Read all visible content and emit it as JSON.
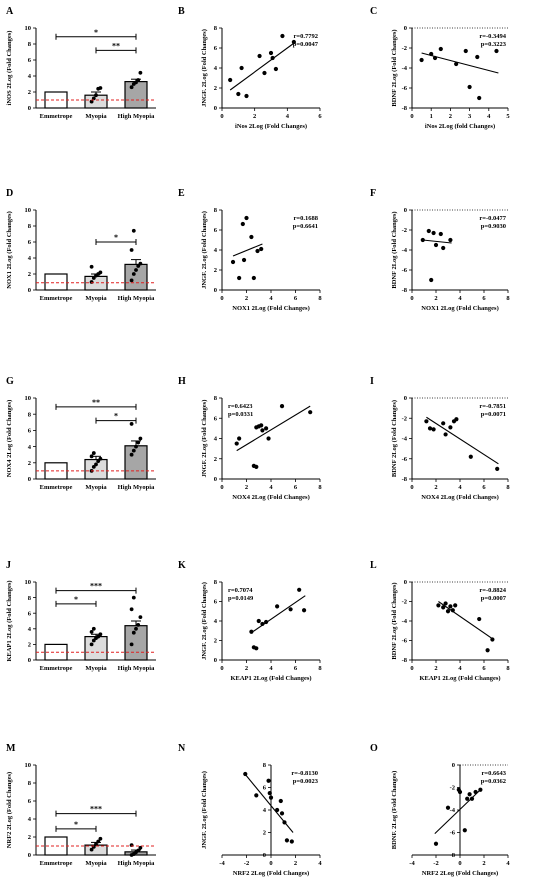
{
  "chart_data": [
    {
      "panel": "A",
      "type": "bar",
      "categories": [
        "Emmetrope",
        "Myopia",
        "High Myopia"
      ],
      "values": [
        2.0,
        1.6,
        3.3
      ],
      "errors": [
        0,
        0.4,
        0.3
      ],
      "ylabel": "iNOS 2Log (Fold Changes)",
      "ylim": [
        0,
        10
      ],
      "yticks": [
        0,
        2,
        4,
        6,
        8,
        10
      ],
      "refline": 1.0,
      "points": [
        [],
        [
          0.8,
          1.2,
          1.6,
          2.4,
          2.5
        ],
        [
          2.6,
          3.0,
          3.2,
          3.5,
          4.4
        ]
      ],
      "sig": [
        {
          "from": 0,
          "to": 2,
          "label": "*",
          "y": 8.9
        },
        {
          "from": 1,
          "to": 2,
          "label": "**",
          "y": 7.2
        }
      ]
    },
    {
      "panel": "B",
      "type": "scatter",
      "xlabel": "iNos 2Log (Fold Changes)",
      "ylabel": "JNGF. 2Log (Fold Changes)",
      "xlim": [
        0,
        6
      ],
      "ylim": [
        0,
        8
      ],
      "xticks": [
        0,
        2,
        4,
        6
      ],
      "yticks": [
        0,
        2,
        4,
        6,
        8
      ],
      "r": "r=0.7792",
      "p": "p=0.0047",
      "x": [
        0.5,
        1.0,
        1.2,
        1.5,
        2.3,
        2.6,
        3.0,
        3.1,
        3.3,
        3.7,
        4.4
      ],
      "y": [
        2.8,
        1.4,
        4.0,
        1.2,
        5.2,
        3.5,
        5.5,
        5.0,
        3.9,
        7.2,
        6.6
      ],
      "fit": [
        [
          0.5,
          1.8
        ],
        [
          4.5,
          6.6
        ]
      ]
    },
    {
      "panel": "C",
      "type": "scatter",
      "xlabel": "iNos 2Log (fold Changes)",
      "ylabel": "BDNF 2Log (Fold Changes)",
      "xlim": [
        0,
        5
      ],
      "ylim": [
        -8,
        0
      ],
      "xticks": [
        0,
        1,
        2,
        3,
        4,
        5
      ],
      "yticks": [
        0,
        -2,
        -4,
        -6,
        -8
      ],
      "r": "r=-0.3494",
      "p": "p=0.3223",
      "zeroline": true,
      "x": [
        0.5,
        1.0,
        1.2,
        1.5,
        2.3,
        2.8,
        3.0,
        3.4,
        3.5,
        4.4
      ],
      "y": [
        -3.2,
        -2.6,
        -3.0,
        -2.1,
        -3.6,
        -2.3,
        -5.9,
        -2.9,
        -7.0,
        -2.3
      ],
      "fit": [
        [
          0.5,
          -2.5
        ],
        [
          4.5,
          -4.5
        ]
      ]
    },
    {
      "panel": "D",
      "type": "bar",
      "categories": [
        "Emmetrope",
        "Myopia",
        "High Myopia"
      ],
      "values": [
        2.0,
        1.7,
        3.2
      ],
      "errors": [
        0,
        0.3,
        0.6
      ],
      "ylabel": "NOX1 2Log (Fold Changes)",
      "ylim": [
        0,
        10
      ],
      "yticks": [
        0,
        2,
        4,
        6,
        8,
        10
      ],
      "refline": 0.9,
      "points": [
        [],
        [
          1.0,
          1.5,
          1.8,
          2.0,
          2.2,
          2.9
        ],
        [
          1.2,
          2.0,
          2.5,
          3.0,
          3.3,
          5.0,
          7.4
        ]
      ],
      "sig": [
        {
          "from": 1,
          "to": 2,
          "label": "*",
          "y": 6.0
        }
      ]
    },
    {
      "panel": "E",
      "type": "scatter",
      "xlabel": "NOX1 2Log (Fold Changes)",
      "ylabel": "JNGF. 2Log (Fold Changes)",
      "xlim": [
        0,
        8
      ],
      "ylim": [
        0,
        8
      ],
      "xticks": [
        0,
        2,
        4,
        6,
        8
      ],
      "yticks": [
        0,
        2,
        4,
        6,
        8
      ],
      "r": "r=0.1688",
      "p": "p=0.6641",
      "x": [
        0.9,
        1.4,
        1.7,
        1.8,
        2.0,
        2.4,
        2.6,
        2.9,
        3.2
      ],
      "y": [
        2.8,
        1.2,
        6.6,
        3.0,
        7.2,
        5.3,
        1.2,
        3.9,
        4.1
      ],
      "fit": [
        [
          0.9,
          3.4
        ],
        [
          3.3,
          4.6
        ]
      ]
    },
    {
      "panel": "F",
      "type": "scatter",
      "xlabel": "NOX1 2Log (Fold Changes)",
      "ylabel": "BDNF 2Log (Fold Changes)",
      "xlim": [
        0,
        8
      ],
      "ylim": [
        -8,
        0
      ],
      "xticks": [
        0,
        2,
        4,
        6,
        8
      ],
      "yticks": [
        0,
        -2,
        -4,
        -6,
        -8
      ],
      "r": "r=-0.0477",
      "p": "p=0.9030",
      "zeroline": true,
      "x": [
        0.9,
        1.4,
        1.6,
        1.8,
        2.0,
        2.4,
        2.6,
        3.2
      ],
      "y": [
        -3.0,
        -2.1,
        -7.0,
        -2.3,
        -3.5,
        -2.4,
        -3.8,
        -3.0
      ],
      "fit": [
        [
          0.9,
          -3.0
        ],
        [
          3.3,
          -3.3
        ]
      ]
    },
    {
      "panel": "G",
      "type": "bar",
      "categories": [
        "Emmetrope",
        "Myopia",
        "High Myopia"
      ],
      "values": [
        2.0,
        2.4,
        4.1
      ],
      "errors": [
        0,
        0.4,
        0.6
      ],
      "ylabel": "NOX4 2Log (Fold Changes)",
      "ylim": [
        0,
        10
      ],
      "yticks": [
        0,
        2,
        4,
        6,
        8,
        10
      ],
      "refline": 1.0,
      "points": [
        [],
        [
          1.0,
          1.5,
          1.8,
          2.2,
          2.5,
          2.8,
          3.2
        ],
        [
          3.0,
          3.5,
          4.0,
          4.5,
          5.0,
          6.8
        ]
      ],
      "sig": [
        {
          "from": 0,
          "to": 2,
          "label": "**",
          "y": 8.9
        },
        {
          "from": 1,
          "to": 2,
          "label": "*",
          "y": 7.2
        }
      ]
    },
    {
      "panel": "H",
      "type": "scatter",
      "xlabel": "NOX4 2Log (Fold Changes)",
      "ylabel": "JNGF. 2Log (Fold Changes)",
      "xlim": [
        0,
        8
      ],
      "ylim": [
        0,
        8
      ],
      "xticks": [
        0,
        2,
        4,
        6,
        8
      ],
      "yticks": [
        0,
        2,
        4,
        6,
        8
      ],
      "r": "r=0.6423",
      "p": "p=0.0331",
      "x": [
        1.2,
        1.4,
        2.6,
        2.8,
        2.8,
        3.0,
        3.2,
        3.3,
        3.6,
        3.8,
        4.9,
        7.2
      ],
      "y": [
        3.5,
        4.0,
        1.3,
        1.2,
        5.1,
        5.2,
        5.3,
        4.8,
        5.0,
        4.0,
        7.2,
        6.6
      ],
      "fit": [
        [
          1.2,
          2.8
        ],
        [
          7.2,
          7.2
        ]
      ]
    },
    {
      "panel": "I",
      "type": "scatter",
      "xlabel": "NOX4 2Log (Fold Changes)",
      "ylabel": "BDNF 2Log (Fold Changes)",
      "xlim": [
        0,
        8
      ],
      "ylim": [
        -8,
        0
      ],
      "xticks": [
        0,
        2,
        4,
        6,
        8
      ],
      "yticks": [
        0,
        -2,
        -4,
        -6,
        -8
      ],
      "r": "r=-0.7851",
      "p": "p=0.0071",
      "zeroline": true,
      "x": [
        1.2,
        1.5,
        1.8,
        2.6,
        2.8,
        3.2,
        3.5,
        3.7,
        4.9,
        7.1
      ],
      "y": [
        -2.3,
        -3.0,
        -3.1,
        -2.5,
        -3.6,
        -2.9,
        -2.3,
        -2.1,
        -5.8,
        -7.0
      ],
      "fit": [
        [
          1.2,
          -1.9
        ],
        [
          7.2,
          -6.5
        ]
      ]
    },
    {
      "panel": "J",
      "type": "bar",
      "categories": [
        "Emmetrope",
        "Myopia",
        "High Myopia"
      ],
      "values": [
        2.0,
        3.0,
        4.4
      ],
      "errors": [
        0,
        0.3,
        0.6
      ],
      "ylabel": "KEAP1 2Log (Fold Changes)",
      "ylim": [
        0,
        10
      ],
      "yticks": [
        0,
        2,
        4,
        6,
        8,
        10
      ],
      "refline": 1.0,
      "points": [
        [],
        [
          2.0,
          2.5,
          2.8,
          3.0,
          3.3,
          3.6,
          4.0
        ],
        [
          2.0,
          3.5,
          4.0,
          4.5,
          5.5,
          6.5,
          8.0
        ]
      ],
      "sig": [
        {
          "from": 0,
          "to": 2,
          "label": "***",
          "y": 8.9
        },
        {
          "from": 0,
          "to": 1,
          "label": "*",
          "y": 7.2
        }
      ]
    },
    {
      "panel": "K",
      "type": "scatter",
      "xlabel": "KEAP1 2Log (Fold Changes)",
      "ylabel": "JNGF. 2Log (Fold Changes)",
      "xlim": [
        0,
        8
      ],
      "ylim": [
        0,
        8
      ],
      "xticks": [
        0,
        2,
        4,
        6,
        8
      ],
      "yticks": [
        0,
        2,
        4,
        6,
        8
      ],
      "r": "r=0.7074",
      "p": "p=0.0149",
      "x": [
        2.4,
        2.6,
        2.8,
        3.0,
        3.3,
        3.6,
        4.5,
        5.6,
        6.3,
        6.7
      ],
      "y": [
        2.9,
        1.3,
        1.2,
        4.0,
        3.7,
        3.9,
        5.5,
        5.2,
        7.2,
        5.1
      ],
      "fit": [
        [
          2.4,
          2.8
        ],
        [
          6.8,
          6.6
        ]
      ]
    },
    {
      "panel": "L",
      "type": "scatter",
      "xlabel": "KEAP1 2Log (Fold Changes)",
      "ylabel": "BDNF 2Log (Fold Changes)",
      "xlim": [
        0,
        8
      ],
      "ylim": [
        -8,
        0
      ],
      "xticks": [
        0,
        2,
        4,
        6,
        8
      ],
      "yticks": [
        0,
        -2,
        -4,
        -6,
        -8
      ],
      "r": "r=-0.8824",
      "p": "p=0.0007",
      "zeroline": true,
      "x": [
        2.2,
        2.6,
        2.8,
        3.0,
        3.2,
        3.4,
        3.6,
        5.6,
        6.3,
        6.7
      ],
      "y": [
        -2.4,
        -2.6,
        -2.2,
        -3.0,
        -2.5,
        -2.9,
        -2.4,
        -3.8,
        -7.0,
        -5.9
      ],
      "fit": [
        [
          2.2,
          -2.0
        ],
        [
          6.8,
          -5.9
        ]
      ]
    },
    {
      "panel": "M",
      "type": "bar",
      "categories": [
        "Emmetrope",
        "Myopia",
        "High Myopia"
      ],
      "values": [
        2.0,
        1.1,
        0.35
      ],
      "errors": [
        0,
        0.3,
        0.2
      ],
      "ylabel": "NRF2 2Log (Fold Changes)",
      "ylim": [
        0,
        10
      ],
      "yticks": [
        0,
        2,
        4,
        6,
        8,
        10
      ],
      "refline": 1.0,
      "points": [
        [],
        [
          0.6,
          0.9,
          1.2,
          1.5,
          1.8
        ],
        [
          0.0,
          0.1,
          0.3,
          0.5,
          0.8,
          1.1
        ]
      ],
      "sig": [
        {
          "from": 0,
          "to": 2,
          "label": "***",
          "y": 4.6
        },
        {
          "from": 0,
          "to": 1,
          "label": "*",
          "y": 2.9
        }
      ]
    },
    {
      "panel": "N",
      "type": "scatter",
      "xlabel": "NRF2 2Log (Fold Changes)",
      "ylabel": "JNGF. 2Log (Fold Changes)",
      "xlim": [
        -4,
        4
      ],
      "ylim": [
        0,
        8
      ],
      "xticks": [
        -4,
        -2,
        0,
        2,
        4
      ],
      "yticks": [
        0,
        2,
        4,
        6,
        8
      ],
      "r": "r=-0.8130",
      "p": "p=0.0023",
      "x": [
        -2.1,
        -1.2,
        -0.2,
        -0.1,
        0.0,
        0.5,
        0.8,
        0.9,
        1.1,
        1.3,
        1.7
      ],
      "y": [
        7.2,
        5.3,
        6.6,
        5.5,
        5.1,
        4.0,
        4.8,
        3.7,
        2.9,
        1.3,
        1.2
      ],
      "fit": [
        [
          -2.2,
          7.3
        ],
        [
          1.8,
          2.0
        ]
      ]
    },
    {
      "panel": "O",
      "type": "scatter",
      "xlabel": "NRF2 2Log (Fold Changes)",
      "ylabel": "BDNF. 2Log (Fold Changes)",
      "xlim": [
        -4,
        4
      ],
      "ylim": [
        -8,
        0
      ],
      "xticks": [
        -4,
        -2,
        0,
        2,
        4
      ],
      "yticks": [
        0,
        -2,
        -4,
        -6,
        -8
      ],
      "r": "r=0.6643",
      "p": "p=0.0362",
      "zeroline": true,
      "x": [
        -2.0,
        -1.0,
        -0.1,
        0.0,
        0.4,
        0.6,
        0.8,
        1.0,
        1.3,
        1.7
      ],
      "y": [
        -7.0,
        -3.8,
        -2.2,
        -2.4,
        -5.8,
        -3.0,
        -2.6,
        -3.0,
        -2.4,
        -2.2
      ],
      "fit": [
        [
          -2.1,
          -6.1
        ],
        [
          1.8,
          -2.1
        ]
      ]
    }
  ]
}
